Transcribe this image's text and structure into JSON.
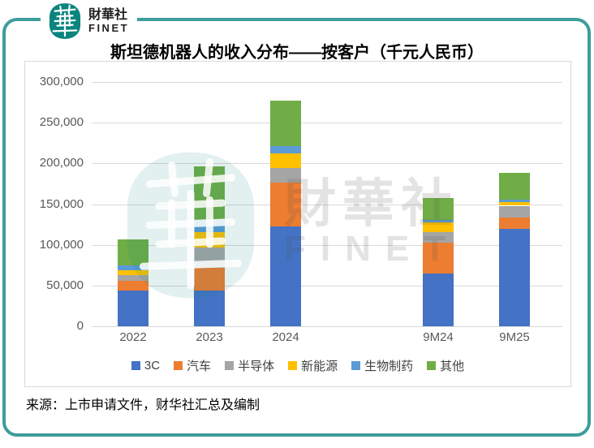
{
  "header": {
    "brand_cn": "財華社",
    "brand_en": "FINET"
  },
  "title": "斯坦德机器人的收入分布——按客户（千元人民币）",
  "watermark": {
    "text_cn": "財華社",
    "text_en": "FINET"
  },
  "source": "来源：上市申请文件，财华社汇总及编制",
  "colors": {
    "accent_teal": "#3E9D9B",
    "logo_teal": "#0A857E",
    "gridline": "#D9D9D9",
    "axis_text": "#595959"
  },
  "chart_data": {
    "type": "bar",
    "stacked": true,
    "title": "斯坦德机器人的收入分布——按客户（千元人民币）",
    "unit": "千元人民币",
    "categories": [
      "2022",
      "2023",
      "2024",
      "9M24",
      "9M25"
    ],
    "category_slots": [
      "2022",
      "2023",
      "2024",
      "",
      "9M24",
      "9M25"
    ],
    "series": [
      {
        "name": "3C",
        "color": "#4472C4",
        "values": [
          44000,
          44000,
          123000,
          65000,
          120000
        ]
      },
      {
        "name": "汽车",
        "color": "#ED7D31",
        "values": [
          12000,
          28000,
          53500,
          38000,
          13500
        ]
      },
      {
        "name": "半导体",
        "color": "#A5A5A5",
        "values": [
          7000,
          25000,
          17500,
          13000,
          14500
        ]
      },
      {
        "name": "新能源",
        "color": "#FFC000",
        "values": [
          5500,
          19000,
          18000,
          11500,
          4500
        ]
      },
      {
        "name": "生物制药",
        "color": "#5B9BD5",
        "values": [
          6500,
          15000,
          9000,
          3500,
          3000
        ]
      },
      {
        "name": "其他",
        "color": "#70AD47",
        "values": [
          31500,
          65000,
          56500,
          26500,
          32500
        ]
      }
    ],
    "totals": [
      106500,
      196000,
      277500,
      157500,
      188000
    ],
    "ylim": [
      0,
      300000
    ],
    "y_ticks": [
      "300,000",
      "250,000",
      "200,000",
      "150,000",
      "100,000",
      "50,000",
      "0"
    ],
    "grid": true,
    "legend_position": "bottom"
  }
}
